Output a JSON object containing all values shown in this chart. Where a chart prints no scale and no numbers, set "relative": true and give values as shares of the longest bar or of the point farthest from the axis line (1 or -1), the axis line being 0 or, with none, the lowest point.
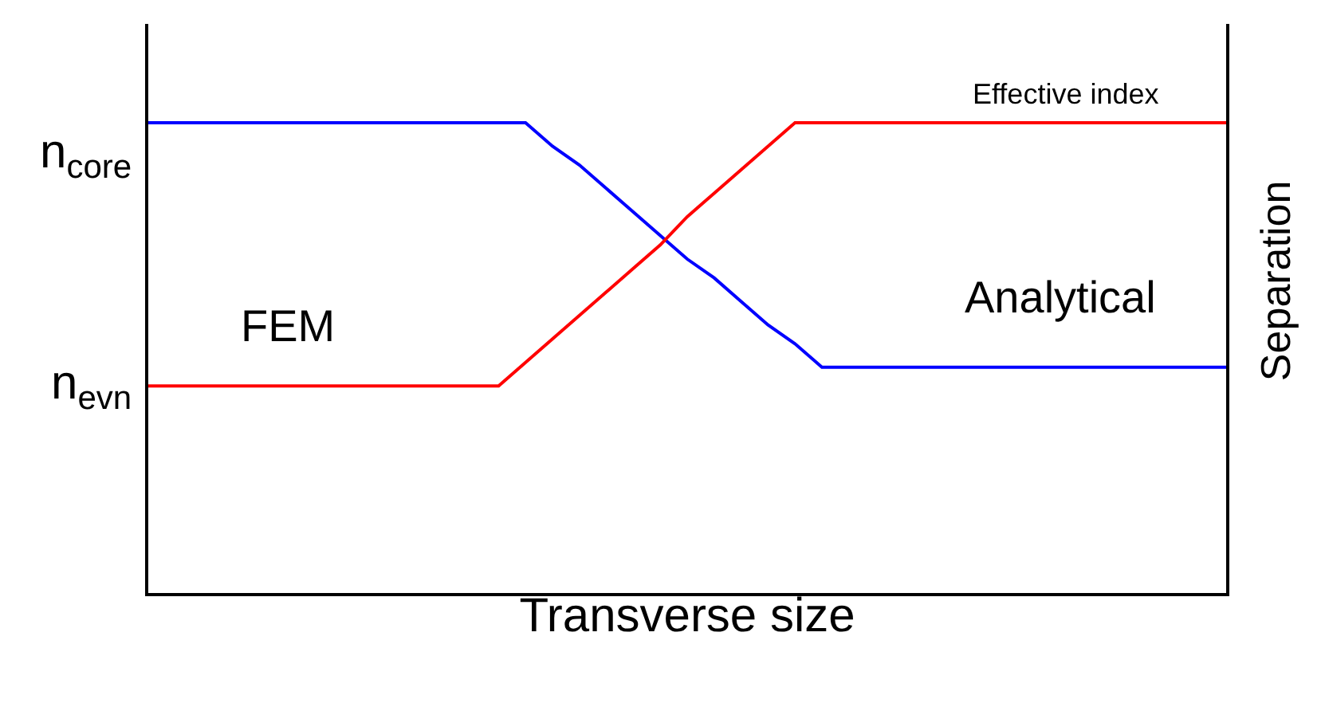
{
  "chart_data": {
    "type": "line",
    "xlabel": "Transverse size",
    "relative": true,
    "categories": [
      null,
      null,
      null,
      null,
      null,
      null,
      null,
      null,
      null,
      null,
      null,
      null,
      null,
      null,
      null,
      null,
      null,
      null,
      null,
      null,
      null,
      null,
      null,
      null,
      null,
      null,
      null,
      null,
      null,
      null,
      null,
      null,
      null,
      null,
      null,
      null,
      null,
      null,
      null,
      null,
      null
    ],
    "series": [
      {
        "color": "#0000ff",
        "values": [
          1,
          1,
          1,
          1,
          1,
          1,
          1,
          1,
          1,
          1,
          1,
          1,
          1,
          1,
          1,
          0.95,
          0.91,
          0.86,
          0.81,
          0.76,
          0.71,
          0.67,
          0.62,
          0.57,
          0.53,
          0.48,
          0.48,
          0.48,
          0.48,
          0.48,
          0.48,
          0.48,
          0.48,
          0.48,
          0.48,
          0.48,
          0.48,
          0.48,
          0.48,
          0.48,
          0.48
        ]
      },
      {
        "name": "Effective index",
        "color": "#ff0000",
        "values": [
          0.44,
          0.44,
          0.44,
          0.44,
          0.44,
          0.44,
          0.44,
          0.44,
          0.44,
          0.44,
          0.44,
          0.44,
          0.44,
          0.44,
          0.49,
          0.54,
          0.59,
          0.64,
          0.69,
          0.74,
          0.8,
          0.85,
          0.9,
          0.95,
          1,
          1,
          1,
          1,
          1,
          1,
          1,
          1,
          1,
          1,
          1,
          1,
          1,
          1,
          1,
          1,
          1
        ]
      }
    ],
    "annotations": [
      "n$_{core}$",
      "n$_{evn}$",
      "FEM",
      "Analytical",
      "Separation"
    ],
    "marker": "none",
    "line_style": "solid",
    "legend": false,
    "tick_labels": false
  }
}
